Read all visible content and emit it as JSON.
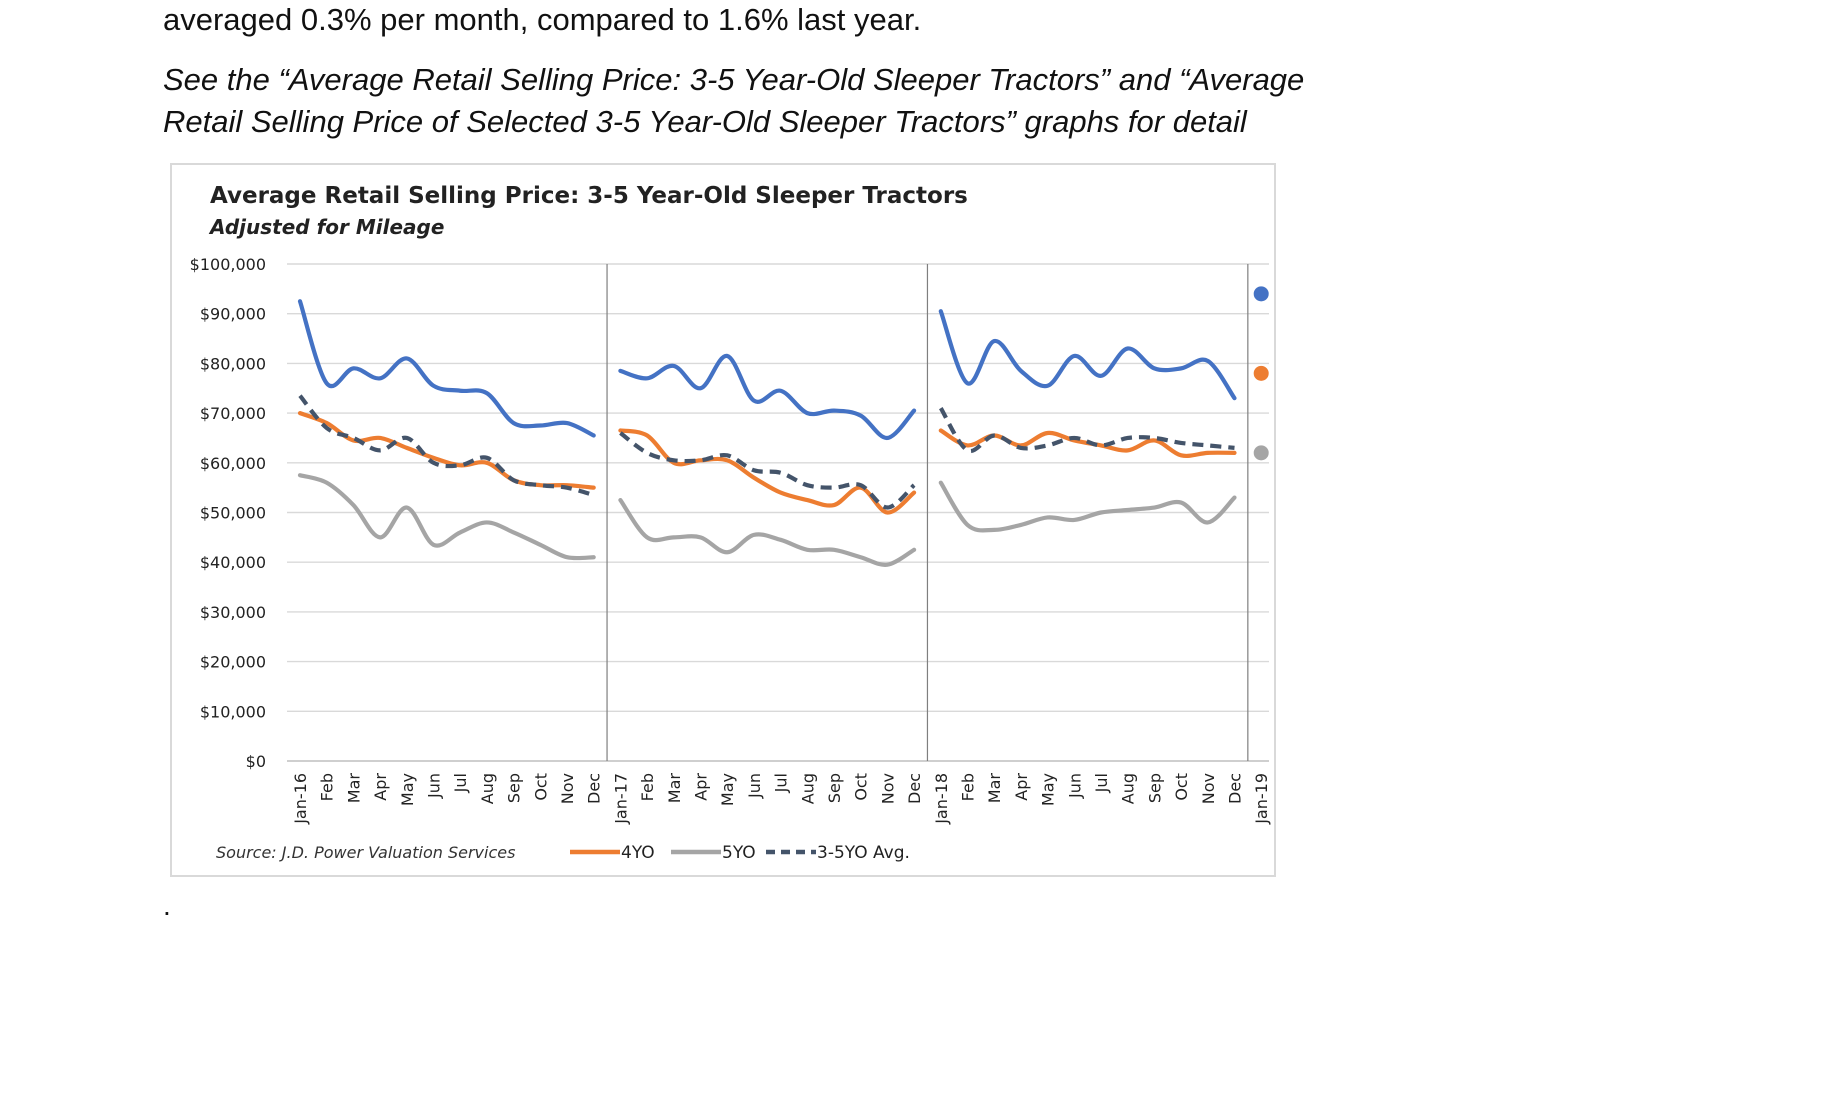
{
  "doc": {
    "intro": "averaged 0.3% per month, compared to 1.6% last year.",
    "see_line1": "See the “Average Retail Selling Price: 3-5 Year-Old Sleeper Tractors” and “Average",
    "see_line2": "Retail Selling Price of Selected 3-5 Year-Old Sleeper Tractors” graphs for detail",
    "trailing": "."
  },
  "chart_data": {
    "type": "line",
    "title": "Average Retail Selling Price: 3-5 Year-Old Sleeper Tractors",
    "subtitle": "Adjusted for Mileage",
    "source": "Source: J.D. Power Valuation Services",
    "ylim": [
      0,
      100000
    ],
    "y_ticks": [
      "$0",
      "$10,000",
      "$20,000",
      "$30,000",
      "$40,000",
      "$50,000",
      "$60,000",
      "$70,000",
      "$80,000",
      "$90,000",
      "$100,000"
    ],
    "categories": [
      "Jan-16",
      "Feb",
      "Mar",
      "Apr",
      "May",
      "Jun",
      "Jul",
      "Aug",
      "Sep",
      "Oct",
      "Nov",
      "Dec",
      "Jan-17",
      "Feb",
      "Mar",
      "Apr",
      "May",
      "Jun",
      "Jul",
      "Aug",
      "Sep",
      "Oct",
      "Nov",
      "Dec",
      "Jan-18",
      "Feb",
      "Mar",
      "Apr",
      "May",
      "Jun",
      "Jul",
      "Aug",
      "Sep",
      "Oct",
      "Nov",
      "Dec",
      "Jan-19"
    ],
    "grid": true,
    "year_dividers_after": [
      "Dec",
      "Dec",
      "Dec"
    ],
    "legend_position": "bottom",
    "series": [
      {
        "key": "blue",
        "color": "#4472C4",
        "dash": false,
        "in_legend": false,
        "segments": [
          [
            92500,
            76000,
            79000,
            77000,
            81000,
            75500,
            74500,
            74000,
            68000,
            67500,
            68000,
            65500
          ],
          [
            78500,
            77000,
            79500,
            75000,
            81500,
            72500,
            74500,
            70000,
            70500,
            69500,
            65000,
            70500
          ],
          [
            90500,
            76000,
            84500,
            78500,
            75500,
            81500,
            77500,
            83000,
            79000,
            79000,
            80500,
            73000
          ]
        ],
        "jan19": 94000
      },
      {
        "key": "4yo",
        "name": "4YO",
        "color": "#ED7D31",
        "dash": false,
        "in_legend": true,
        "segments": [
          [
            70000,
            68000,
            64500,
            65000,
            63000,
            61000,
            59500,
            60000,
            56500,
            55500,
            55500,
            55000
          ],
          [
            66500,
            65500,
            60000,
            60500,
            60500,
            57000,
            54000,
            52500,
            51500,
            55000,
            50000,
            54000
          ],
          [
            66500,
            63500,
            65500,
            63500,
            66000,
            64500,
            63500,
            62500,
            64500,
            61500,
            62000,
            62000
          ]
        ],
        "jan19": 78000
      },
      {
        "key": "5yo",
        "name": "5YO",
        "color": "#A5A5A5",
        "dash": false,
        "in_legend": true,
        "segments": [
          [
            57500,
            56000,
            51500,
            45000,
            51000,
            43500,
            46000,
            48000,
            46000,
            43500,
            41000,
            41000
          ],
          [
            52500,
            45000,
            45000,
            45000,
            42000,
            45500,
            44500,
            42500,
            42500,
            41000,
            39500,
            42500
          ],
          [
            56000,
            47500,
            46500,
            47500,
            49000,
            48500,
            50000,
            50500,
            51000,
            52000,
            48000,
            53000
          ]
        ],
        "jan19": 62000
      },
      {
        "key": "avg",
        "name": "3-5YO Avg.",
        "color": "#44546A",
        "dash": true,
        "in_legend": true,
        "segments": [
          [
            73500,
            67000,
            65000,
            62500,
            65000,
            60000,
            59500,
            61000,
            56500,
            55500,
            55000,
            53500
          ],
          [
            66000,
            62000,
            60500,
            60500,
            61500,
            58500,
            58000,
            55500,
            55000,
            55500,
            51000,
            55500
          ],
          [
            71000,
            62500,
            65500,
            63000,
            63500,
            65000,
            63500,
            65000,
            65000,
            64000,
            63500,
            63000
          ]
        ],
        "jan19": null
      }
    ]
  }
}
